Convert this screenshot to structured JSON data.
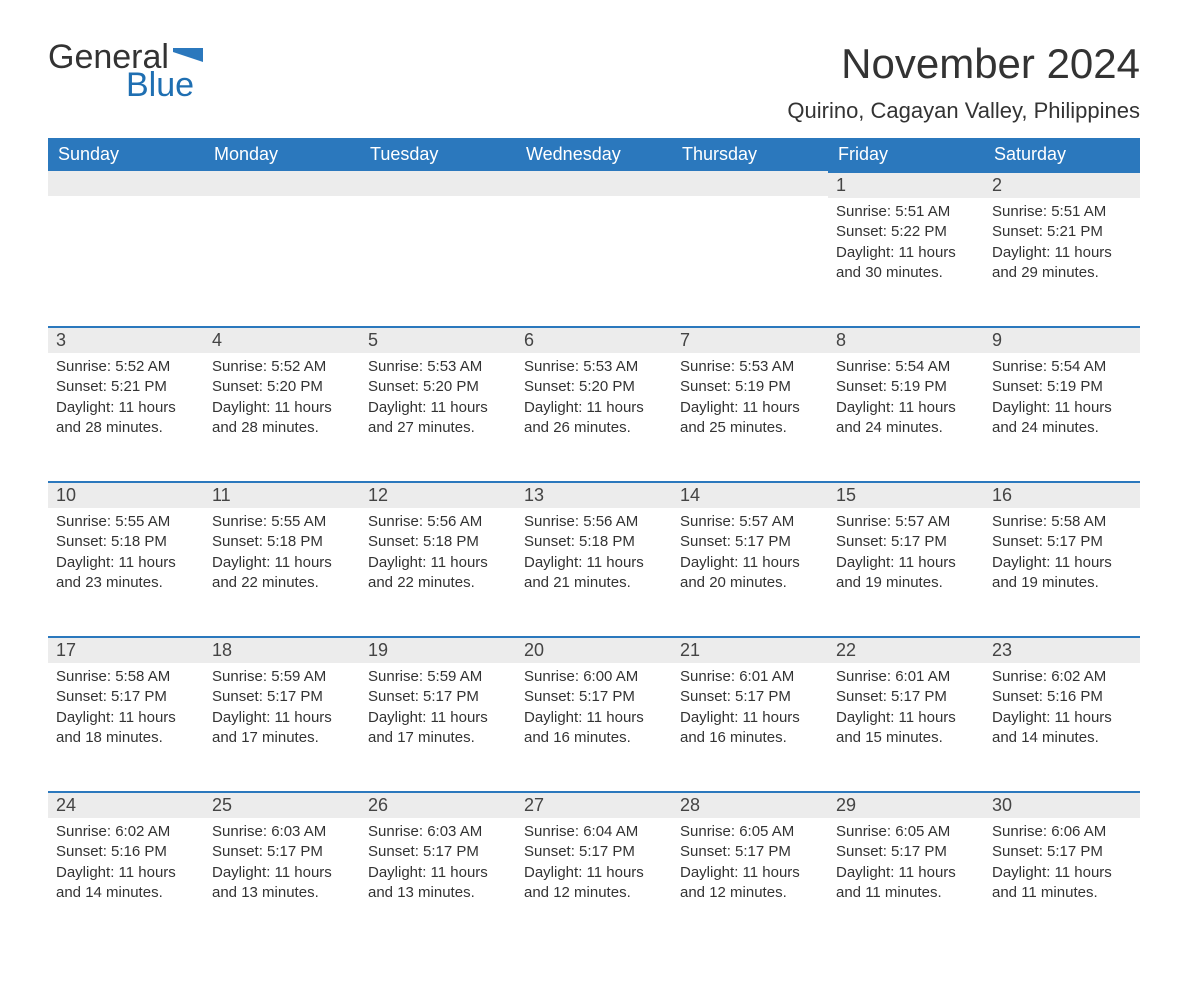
{
  "logo": {
    "general": "General",
    "blue": "Blue"
  },
  "title": "November 2024",
  "location": "Quirino, Cagayan Valley, Philippines",
  "colors": {
    "header_bg": "#2b78bd",
    "header_text": "#ffffff",
    "daynum_bg": "#ececec",
    "row_border": "#2b78bd",
    "text": "#333333",
    "logo_blue": "#1f6fb2"
  },
  "typography": {
    "title_fontsize": 42,
    "location_fontsize": 22,
    "header_fontsize": 18,
    "daynum_fontsize": 18,
    "body_fontsize": 15
  },
  "weekdays": [
    "Sunday",
    "Monday",
    "Tuesday",
    "Wednesday",
    "Thursday",
    "Friday",
    "Saturday"
  ],
  "weeks": [
    [
      null,
      null,
      null,
      null,
      null,
      {
        "d": "1",
        "sunrise": "Sunrise: 5:51 AM",
        "sunset": "Sunset: 5:22 PM",
        "daylight": "Daylight: 11 hours and 30 minutes."
      },
      {
        "d": "2",
        "sunrise": "Sunrise: 5:51 AM",
        "sunset": "Sunset: 5:21 PM",
        "daylight": "Daylight: 11 hours and 29 minutes."
      }
    ],
    [
      {
        "d": "3",
        "sunrise": "Sunrise: 5:52 AM",
        "sunset": "Sunset: 5:21 PM",
        "daylight": "Daylight: 11 hours and 28 minutes."
      },
      {
        "d": "4",
        "sunrise": "Sunrise: 5:52 AM",
        "sunset": "Sunset: 5:20 PM",
        "daylight": "Daylight: 11 hours and 28 minutes."
      },
      {
        "d": "5",
        "sunrise": "Sunrise: 5:53 AM",
        "sunset": "Sunset: 5:20 PM",
        "daylight": "Daylight: 11 hours and 27 minutes."
      },
      {
        "d": "6",
        "sunrise": "Sunrise: 5:53 AM",
        "sunset": "Sunset: 5:20 PM",
        "daylight": "Daylight: 11 hours and 26 minutes."
      },
      {
        "d": "7",
        "sunrise": "Sunrise: 5:53 AM",
        "sunset": "Sunset: 5:19 PM",
        "daylight": "Daylight: 11 hours and 25 minutes."
      },
      {
        "d": "8",
        "sunrise": "Sunrise: 5:54 AM",
        "sunset": "Sunset: 5:19 PM",
        "daylight": "Daylight: 11 hours and 24 minutes."
      },
      {
        "d": "9",
        "sunrise": "Sunrise: 5:54 AM",
        "sunset": "Sunset: 5:19 PM",
        "daylight": "Daylight: 11 hours and 24 minutes."
      }
    ],
    [
      {
        "d": "10",
        "sunrise": "Sunrise: 5:55 AM",
        "sunset": "Sunset: 5:18 PM",
        "daylight": "Daylight: 11 hours and 23 minutes."
      },
      {
        "d": "11",
        "sunrise": "Sunrise: 5:55 AM",
        "sunset": "Sunset: 5:18 PM",
        "daylight": "Daylight: 11 hours and 22 minutes."
      },
      {
        "d": "12",
        "sunrise": "Sunrise: 5:56 AM",
        "sunset": "Sunset: 5:18 PM",
        "daylight": "Daylight: 11 hours and 22 minutes."
      },
      {
        "d": "13",
        "sunrise": "Sunrise: 5:56 AM",
        "sunset": "Sunset: 5:18 PM",
        "daylight": "Daylight: 11 hours and 21 minutes."
      },
      {
        "d": "14",
        "sunrise": "Sunrise: 5:57 AM",
        "sunset": "Sunset: 5:17 PM",
        "daylight": "Daylight: 11 hours and 20 minutes."
      },
      {
        "d": "15",
        "sunrise": "Sunrise: 5:57 AM",
        "sunset": "Sunset: 5:17 PM",
        "daylight": "Daylight: 11 hours and 19 minutes."
      },
      {
        "d": "16",
        "sunrise": "Sunrise: 5:58 AM",
        "sunset": "Sunset: 5:17 PM",
        "daylight": "Daylight: 11 hours and 19 minutes."
      }
    ],
    [
      {
        "d": "17",
        "sunrise": "Sunrise: 5:58 AM",
        "sunset": "Sunset: 5:17 PM",
        "daylight": "Daylight: 11 hours and 18 minutes."
      },
      {
        "d": "18",
        "sunrise": "Sunrise: 5:59 AM",
        "sunset": "Sunset: 5:17 PM",
        "daylight": "Daylight: 11 hours and 17 minutes."
      },
      {
        "d": "19",
        "sunrise": "Sunrise: 5:59 AM",
        "sunset": "Sunset: 5:17 PM",
        "daylight": "Daylight: 11 hours and 17 minutes."
      },
      {
        "d": "20",
        "sunrise": "Sunrise: 6:00 AM",
        "sunset": "Sunset: 5:17 PM",
        "daylight": "Daylight: 11 hours and 16 minutes."
      },
      {
        "d": "21",
        "sunrise": "Sunrise: 6:01 AM",
        "sunset": "Sunset: 5:17 PM",
        "daylight": "Daylight: 11 hours and 16 minutes."
      },
      {
        "d": "22",
        "sunrise": "Sunrise: 6:01 AM",
        "sunset": "Sunset: 5:17 PM",
        "daylight": "Daylight: 11 hours and 15 minutes."
      },
      {
        "d": "23",
        "sunrise": "Sunrise: 6:02 AM",
        "sunset": "Sunset: 5:16 PM",
        "daylight": "Daylight: 11 hours and 14 minutes."
      }
    ],
    [
      {
        "d": "24",
        "sunrise": "Sunrise: 6:02 AM",
        "sunset": "Sunset: 5:16 PM",
        "daylight": "Daylight: 11 hours and 14 minutes."
      },
      {
        "d": "25",
        "sunrise": "Sunrise: 6:03 AM",
        "sunset": "Sunset: 5:17 PM",
        "daylight": "Daylight: 11 hours and 13 minutes."
      },
      {
        "d": "26",
        "sunrise": "Sunrise: 6:03 AM",
        "sunset": "Sunset: 5:17 PM",
        "daylight": "Daylight: 11 hours and 13 minutes."
      },
      {
        "d": "27",
        "sunrise": "Sunrise: 6:04 AM",
        "sunset": "Sunset: 5:17 PM",
        "daylight": "Daylight: 11 hours and 12 minutes."
      },
      {
        "d": "28",
        "sunrise": "Sunrise: 6:05 AM",
        "sunset": "Sunset: 5:17 PM",
        "daylight": "Daylight: 11 hours and 12 minutes."
      },
      {
        "d": "29",
        "sunrise": "Sunrise: 6:05 AM",
        "sunset": "Sunset: 5:17 PM",
        "daylight": "Daylight: 11 hours and 11 minutes."
      },
      {
        "d": "30",
        "sunrise": "Sunrise: 6:06 AM",
        "sunset": "Sunset: 5:17 PM",
        "daylight": "Daylight: 11 hours and 11 minutes."
      }
    ]
  ]
}
